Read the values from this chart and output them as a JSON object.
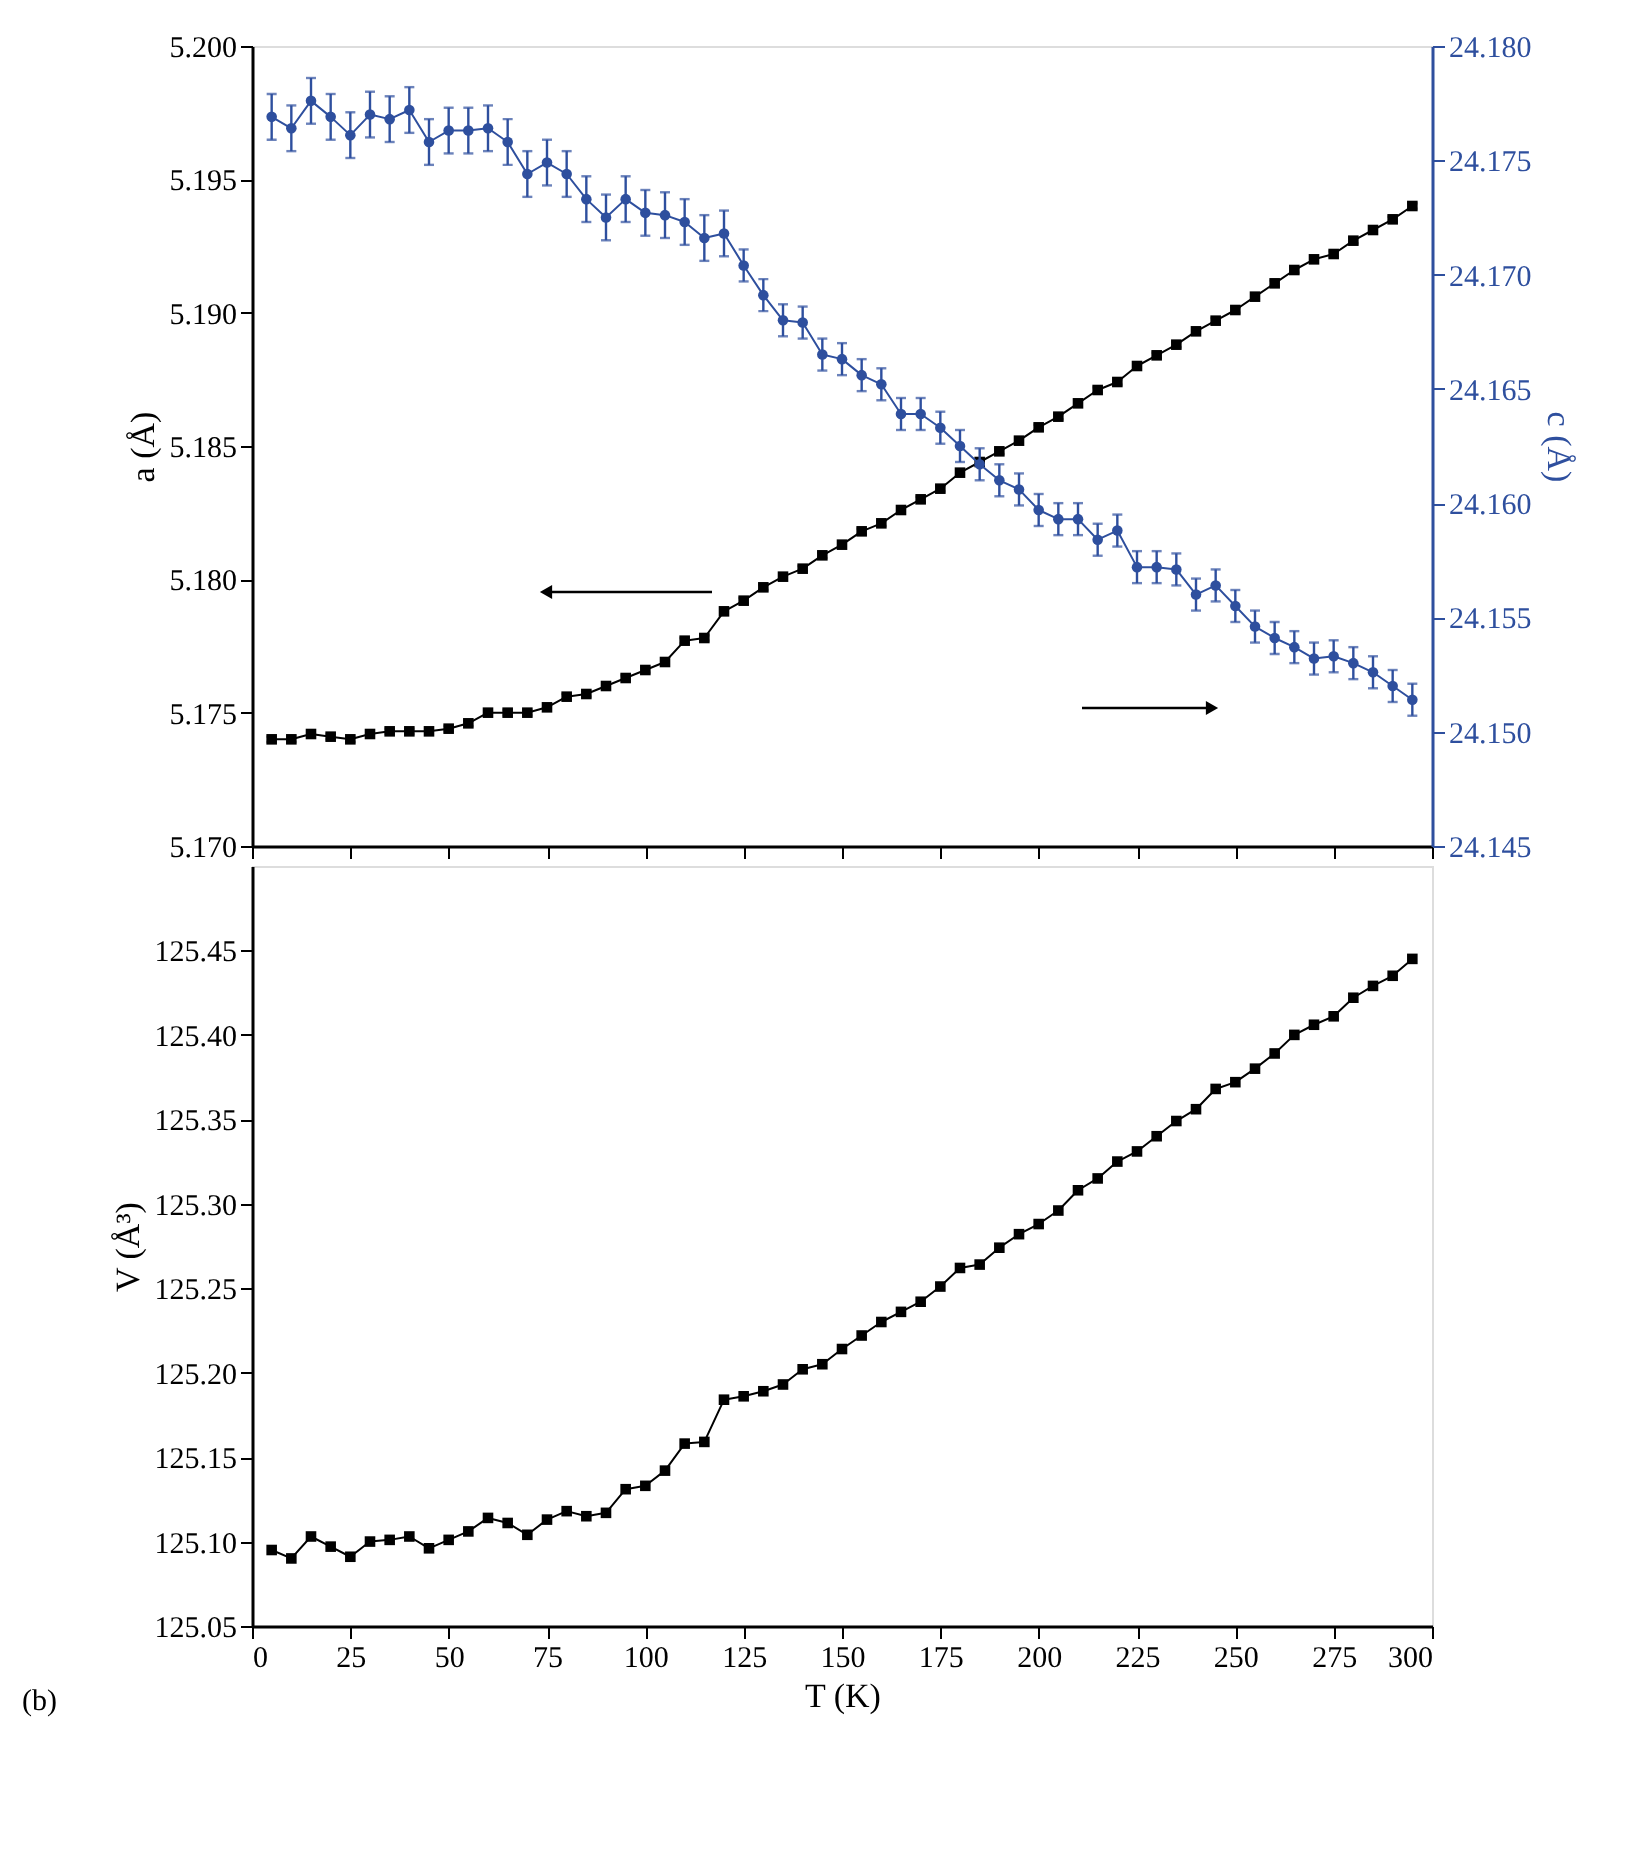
{
  "chart_data": [
    {
      "type": "line",
      "x": [
        5,
        10,
        15,
        20,
        25,
        30,
        35,
        40,
        45,
        50,
        55,
        60,
        65,
        70,
        75,
        80,
        85,
        90,
        95,
        100,
        105,
        110,
        115,
        120,
        125,
        130,
        135,
        140,
        145,
        150,
        155,
        160,
        165,
        170,
        175,
        180,
        185,
        190,
        195,
        200,
        205,
        210,
        215,
        220,
        225,
        230,
        235,
        240,
        245,
        250,
        255,
        260,
        265,
        270,
        275,
        280,
        285,
        290,
        295
      ],
      "xlim": [
        0,
        300
      ],
      "xticks": [
        0,
        25,
        50,
        75,
        100,
        125,
        150,
        175,
        200,
        225,
        250,
        275,
        300
      ],
      "tick_labels": "y",
      "ylabel": "a (Å)",
      "y2label": "c (Å)",
      "ylim": [
        5.17,
        5.2
      ],
      "yticks": [
        {
          "value": 5.17,
          "label": "5.170"
        },
        {
          "value": 5.175,
          "label": "5.175"
        },
        {
          "value": 5.18,
          "label": "5.180"
        },
        {
          "value": 5.185,
          "label": "5.185"
        },
        {
          "value": 5.19,
          "label": "5.190"
        },
        {
          "value": 5.195,
          "label": "5.195"
        },
        {
          "value": 5.2,
          "label": "5.200"
        }
      ],
      "y2lim": [
        24.145,
        24.18
      ],
      "y2ticks": [
        {
          "value": 24.145,
          "label": "24.145"
        },
        {
          "value": 24.15,
          "label": "24.150"
        },
        {
          "value": 24.155,
          "label": "24.155"
        },
        {
          "value": 24.16,
          "label": "24.160"
        },
        {
          "value": 24.165,
          "label": "24.165"
        },
        {
          "value": 24.17,
          "label": "24.170"
        },
        {
          "value": 24.175,
          "label": "24.175"
        },
        {
          "value": 24.18,
          "label": "24.180"
        }
      ],
      "series": [
        {
          "color": "#000000",
          "marker": "square",
          "values": [
            5.174,
            5.174,
            5.1742,
            5.1741,
            5.174,
            5.1742,
            5.1743,
            5.1743,
            5.1743,
            5.1744,
            5.1746,
            5.175,
            5.175,
            5.175,
            5.1752,
            5.1756,
            5.1757,
            5.176,
            5.1763,
            5.1766,
            5.1769,
            5.1777,
            5.1778,
            5.1788,
            5.1792,
            5.1797,
            5.1801,
            5.1804,
            5.1809,
            5.1813,
            5.1818,
            5.1821,
            5.1826,
            5.183,
            5.1834,
            5.184,
            5.1844,
            5.1848,
            5.1852,
            5.1857,
            5.1861,
            5.1866,
            5.1871,
            5.1874,
            5.188,
            5.1884,
            5.1888,
            5.1893,
            5.1897,
            5.1901,
            5.1906,
            5.1911,
            5.1916,
            5.192,
            5.1922,
            5.1927,
            5.1931,
            5.1935,
            5.194
          ],
          "errors": [
            0.0001,
            0.0001,
            0.0001,
            0.0001,
            0.0001,
            0.0001,
            0.0001,
            0.0001,
            0.0001,
            0.0001,
            0.0001,
            0.0001,
            0.0001,
            0.0001,
            0.0001,
            0.0001,
            0.0001,
            0.0001,
            0.0001,
            0.0001,
            0.0001,
            0.0001,
            0.0001,
            0.0001,
            0.0001,
            0.0001,
            0.0001,
            0.0001,
            0.0001,
            0.0001,
            0.0001,
            0.0001,
            0.0001,
            0.0001,
            0.0001,
            0.0001,
            0.0001,
            0.0001,
            0.0001,
            0.0001,
            0.0001,
            0.0001,
            0.0001,
            0.0001,
            0.0001,
            0.0001,
            0.0001,
            0.0001,
            0.0001,
            0.0001,
            0.0001,
            0.0001,
            0.0001,
            0.0001,
            0.0001,
            0.0001,
            0.0001,
            0.0001,
            0.0001
          ]
        },
        {
          "color": "#2e4f9e",
          "marker": "circle",
          "axis": "y2",
          "values": [
            24.1769,
            24.1764,
            24.1776,
            24.1769,
            24.1761,
            24.177,
            24.1768,
            24.1772,
            24.1758,
            24.1763,
            24.1763,
            24.1764,
            24.1758,
            24.1744,
            24.1749,
            24.1744,
            24.1733,
            24.1725,
            24.1733,
            24.1727,
            24.1726,
            24.1723,
            24.1716,
            24.1718,
            24.1704,
            24.1691,
            24.168,
            24.1679,
            24.1665,
            24.1663,
            24.1656,
            24.1652,
            24.1639,
            24.1639,
            24.1633,
            24.1625,
            24.1617,
            24.161,
            24.1606,
            24.1597,
            24.1593,
            24.1593,
            24.1584,
            24.1588,
            24.1572,
            24.1572,
            24.1571,
            24.156,
            24.1564,
            24.1555,
            24.1546,
            24.1541,
            24.1537,
            24.1532,
            24.1533,
            24.153,
            24.1526,
            24.152,
            24.1514
          ],
          "errors": [
            0.001,
            0.001,
            0.001,
            0.001,
            0.001,
            0.001,
            0.001,
            0.001,
            0.001,
            0.001,
            0.001,
            0.001,
            0.001,
            0.001,
            0.001,
            0.001,
            0.001,
            0.001,
            0.001,
            0.001,
            0.001,
            0.001,
            0.001,
            0.001,
            0.0007,
            0.0007,
            0.0007,
            0.0007,
            0.0007,
            0.0007,
            0.0007,
            0.0007,
            0.0007,
            0.0007,
            0.0007,
            0.0007,
            0.0007,
            0.0007,
            0.0007,
            0.0007,
            0.0007,
            0.0007,
            0.0007,
            0.0007,
            0.0007,
            0.0007,
            0.0007,
            0.0007,
            0.0007,
            0.0007,
            0.0007,
            0.0007,
            0.0007,
            0.0007,
            0.0007,
            0.0007,
            0.0007,
            0.0007,
            0.0007
          ]
        }
      ]
    },
    {
      "type": "line",
      "x": [
        5,
        10,
        15,
        20,
        25,
        30,
        35,
        40,
        45,
        50,
        55,
        60,
        65,
        70,
        75,
        80,
        85,
        90,
        95,
        100,
        105,
        110,
        115,
        120,
        125,
        130,
        135,
        140,
        145,
        150,
        155,
        160,
        165,
        170,
        175,
        180,
        185,
        190,
        195,
        200,
        205,
        210,
        215,
        220,
        225,
        230,
        235,
        240,
        245,
        250,
        255,
        260,
        265,
        270,
        275,
        280,
        285,
        290,
        295
      ],
      "xlim": [
        0,
        300
      ],
      "xticks": [
        0,
        25,
        50,
        75,
        100,
        125,
        150,
        175,
        200,
        225,
        250,
        275,
        300
      ],
      "xlabel": "T (K)",
      "ylabel": "V (Å³)",
      "ylim": [
        125.05,
        125.5
      ],
      "yticks": [
        {
          "value": 125.05,
          "label": "125.05"
        },
        {
          "value": 125.1,
          "label": "125.10"
        },
        {
          "value": 125.15,
          "label": "125.15"
        },
        {
          "value": 125.2,
          "label": "125.20"
        },
        {
          "value": 125.25,
          "label": "125.25"
        },
        {
          "value": 125.3,
          "label": "125.30"
        },
        {
          "value": 125.35,
          "label": "125.35"
        },
        {
          "value": 125.4,
          "label": "125.40"
        },
        {
          "value": 125.45,
          "label": "125.45"
        }
      ],
      "annotations": [
        "(b)"
      ],
      "series": [
        {
          "color": "#000000",
          "marker": "square",
          "values": [
            125.095,
            125.09,
            125.103,
            125.097,
            125.091,
            125.1,
            125.101,
            125.103,
            125.096,
            125.101,
            125.106,
            125.114,
            125.111,
            125.104,
            125.113,
            125.118,
            125.115,
            125.117,
            125.131,
            125.133,
            125.142,
            125.158,
            125.159,
            125.184,
            125.186,
            125.189,
            125.193,
            125.202,
            125.205,
            125.214,
            125.222,
            125.23,
            125.236,
            125.242,
            125.251,
            125.262,
            125.264,
            125.274,
            125.282,
            125.288,
            125.296,
            125.308,
            125.315,
            125.325,
            125.331,
            125.34,
            125.349,
            125.356,
            125.368,
            125.372,
            125.38,
            125.389,
            125.4,
            125.406,
            125.411,
            125.422,
            125.429,
            125.435,
            125.445
          ]
        }
      ]
    }
  ]
}
